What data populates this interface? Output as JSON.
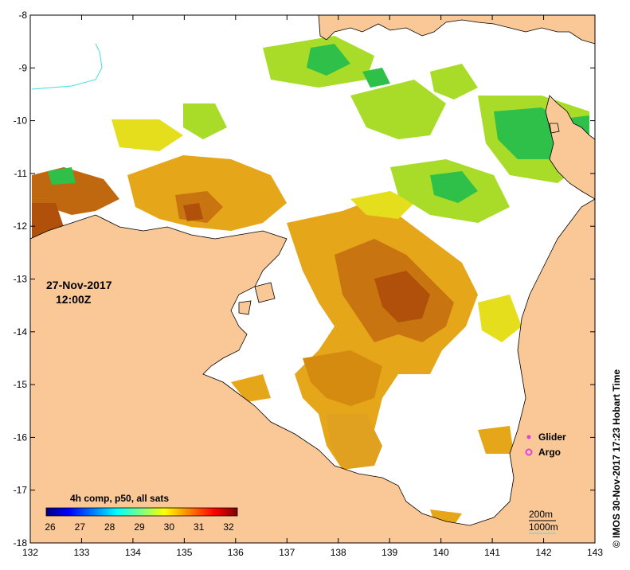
{
  "map": {
    "date": "27-Nov-2017",
    "time": "12:00Z",
    "credit": "© IMOS 30-Nov-2017 17:23 Hobart Time",
    "lon_ticks": [
      "132",
      "133",
      "134",
      "135",
      "136",
      "137",
      "138",
      "139",
      "140",
      "141",
      "142",
      "143"
    ],
    "lat_ticks": [
      "-8",
      "-9",
      "-10",
      "-11",
      "-12",
      "-13",
      "-14",
      "-15",
      "-16",
      "-17",
      "-18"
    ],
    "colorbar": {
      "title": "4h comp, p50, all sats",
      "ticks": [
        "26",
        "27",
        "28",
        "29",
        "30",
        "31",
        "32"
      ],
      "colors": [
        "#00007f",
        "#0000ff",
        "#0080ff",
        "#00ffff",
        "#80ff80",
        "#ffff00",
        "#ff8000",
        "#ff0000",
        "#7f0000"
      ]
    },
    "legend": {
      "glider": "Glider",
      "argo": "Argo",
      "glider_color": "#e040e0",
      "argo_color": "#e040e0"
    },
    "depth": {
      "d200": "200m",
      "d1000": "1000m",
      "d200_color": "#000000",
      "d1000_color": "#40e0e0"
    },
    "colors": {
      "land": "#fac896",
      "ocean": "#ffffff",
      "warm_dark": "#b0500a",
      "warm": "#d58a10",
      "orange": "#e6a619",
      "yellow": "#e4de1c",
      "lime": "#a8dc28",
      "green": "#2fc04a"
    }
  }
}
